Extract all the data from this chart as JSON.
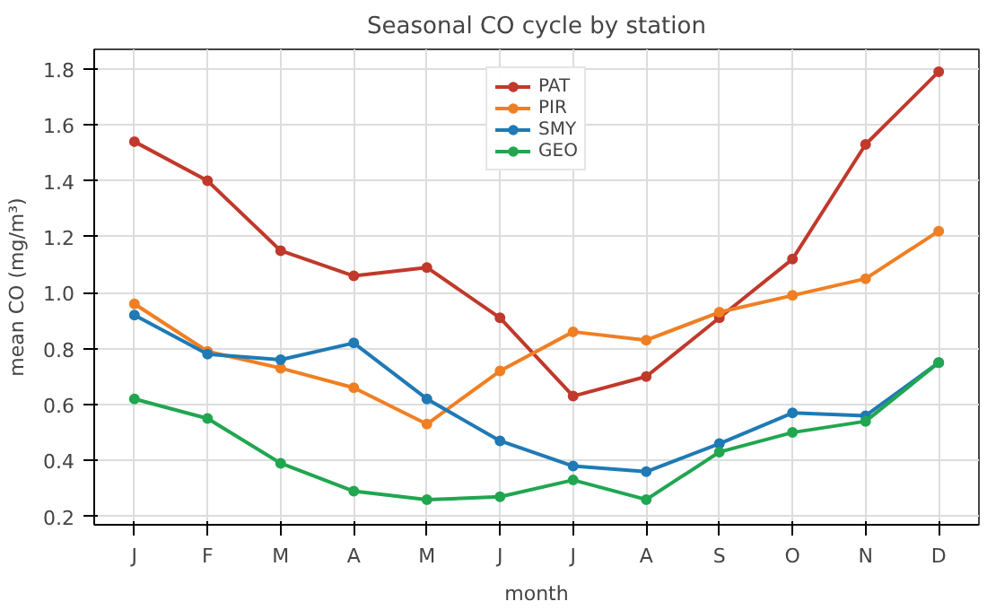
{
  "chart_data": {
    "type": "line",
    "title": "Seasonal CO cycle by station",
    "xlabel": "month",
    "ylabel": "mean CO (mg/m³)",
    "categories": [
      "J",
      "F",
      "M",
      "A",
      "M",
      "J",
      "J",
      "A",
      "S",
      "O",
      "N",
      "D"
    ],
    "series": [
      {
        "name": "PAT",
        "color": "#c0392b",
        "values": [
          1.54,
          1.4,
          1.15,
          1.06,
          1.09,
          0.91,
          0.63,
          0.7,
          0.91,
          1.12,
          1.53,
          1.79
        ]
      },
      {
        "name": "PIR",
        "color": "#f07f23",
        "values": [
          0.96,
          0.79,
          0.73,
          0.66,
          0.53,
          0.72,
          0.86,
          0.83,
          0.93,
          0.99,
          1.05,
          1.22
        ]
      },
      {
        "name": "SMY",
        "color": "#1f7ab5",
        "values": [
          0.92,
          0.78,
          0.76,
          0.82,
          0.62,
          0.47,
          0.38,
          0.36,
          0.46,
          0.57,
          0.56,
          0.75
        ]
      },
      {
        "name": "GEO",
        "color": "#21a650",
        "values": [
          0.62,
          0.55,
          0.39,
          0.29,
          0.26,
          0.27,
          0.33,
          0.26,
          0.43,
          0.5,
          0.54,
          0.75
        ]
      }
    ],
    "ylim": [
      0.17,
      1.87
    ],
    "yticks": [
      0.2,
      0.4,
      0.6,
      0.8,
      {
        "value": 1,
        "label": "1.0"
      },
      1.2,
      1.4,
      1.6,
      1.8
    ],
    "grid": true,
    "legend": "top",
    "marker": "circle",
    "line_style": "solid"
  }
}
